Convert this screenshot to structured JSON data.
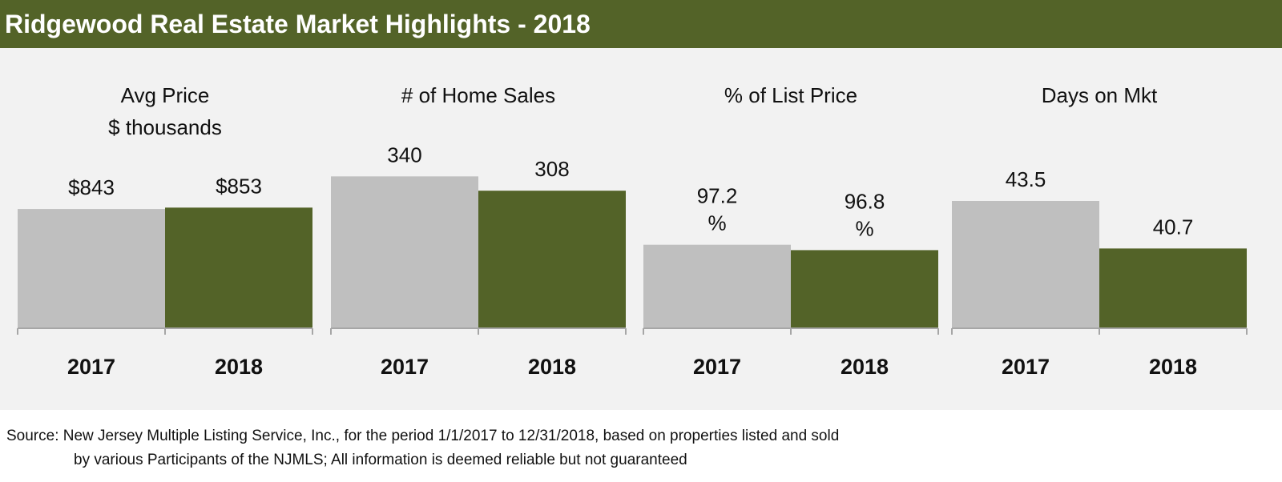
{
  "header": {
    "title": "Ridgewood Real Estate Market Highlights - 2018"
  },
  "colors": {
    "header_bg": "#536328",
    "bar_2017": "#bfbfbf",
    "bar_2018": "#536328",
    "plot_bg": "#f2f2f2"
  },
  "source": {
    "line1": "Source: New Jersey Multiple Listing Service, Inc., for the period 1/1/2017 to 12/31/2018, based on properties listed and sold",
    "line2": "by various Participants of the NJMLS; All information is deemed reliable but not guaranteed"
  },
  "chart_data": [
    {
      "type": "bar",
      "title_lines": [
        "Avg Price",
        "$ thousands"
      ],
      "categories": [
        "2017",
        "2018"
      ],
      "values": [
        843,
        853
      ],
      "data_labels": [
        [
          "$843"
        ],
        [
          "$853"
        ]
      ],
      "ylim": [
        0,
        1200
      ]
    },
    {
      "type": "bar",
      "title_lines": [
        "# of Home Sales"
      ],
      "categories": [
        "2017",
        "2018"
      ],
      "values": [
        340,
        308
      ],
      "data_labels": [
        [
          "340"
        ],
        [
          "308"
        ]
      ],
      "ylim": [
        0,
        380
      ]
    },
    {
      "type": "bar",
      "title_lines": [
        "% of List Price"
      ],
      "categories": [
        "2017",
        "2018"
      ],
      "values": [
        97.2,
        96.8
      ],
      "data_labels": [
        [
          "97.2",
          "%"
        ],
        [
          "96.8",
          "%"
        ]
      ],
      "ylim": [
        91.0,
        103.6
      ]
    },
    {
      "type": "bar",
      "title_lines": [
        "Days on Mkt"
      ],
      "categories": [
        "2017",
        "2018"
      ],
      "values": [
        43.5,
        40.7
      ],
      "data_labels": [
        [
          "43.5"
        ],
        [
          "40.7"
        ]
      ],
      "ylim": [
        36.0,
        46.0
      ]
    }
  ]
}
